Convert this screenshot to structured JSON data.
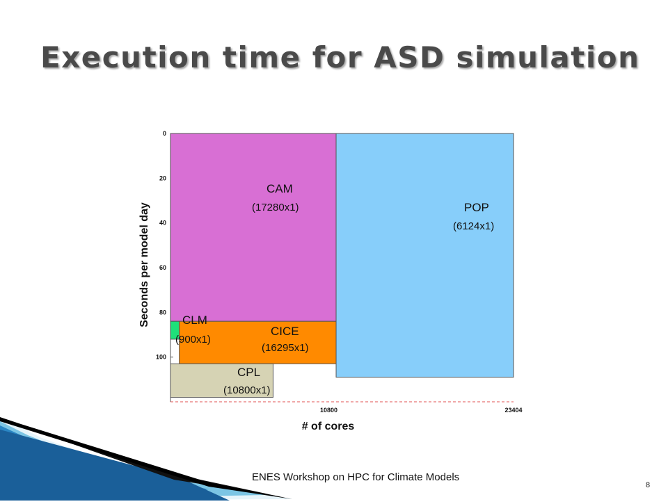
{
  "slide": {
    "title": "Execution time for ASD simulation",
    "footer": "ENES Workshop on HPC for Climate Models",
    "page_number": "8"
  },
  "colors": {
    "CAM": "#d86fd4",
    "POP": "#87cefa",
    "CLM": "#1fe07a",
    "CICE": "#ff8a00",
    "CPL": "#d6d3b4",
    "deco_blue": "#2a86c4",
    "deco_black": "#111111"
  },
  "chart_data": {
    "type": "bar",
    "xlabel": "# of cores",
    "ylabel": "Seconds per model day",
    "xlim": [
      0,
      23404
    ],
    "ylim": [
      0,
      120
    ],
    "y_inverted": true,
    "x_ticks": [
      "10800",
      "23404"
    ],
    "y_ticks": [
      "0",
      "20",
      "40",
      "60",
      "80",
      "100"
    ],
    "grid": false,
    "blocks": [
      {
        "component": "CAM",
        "label": "CAM",
        "sublabel": "(17280x1)",
        "cores_start": 0,
        "cores_end": 11300,
        "time_start": 0,
        "time_end": 84
      },
      {
        "component": "POP",
        "label": "POP",
        "sublabel": "(6124x1)",
        "cores_start": 11300,
        "cores_end": 23404,
        "time_start": 0,
        "time_end": 109
      },
      {
        "component": "CLM",
        "label": "CLM",
        "sublabel": "(900x1)",
        "cores_start": 0,
        "cores_end": 600,
        "time_start": 84,
        "time_end": 92
      },
      {
        "component": "CICE",
        "label": "CICE",
        "sublabel": "(16295x1)",
        "cores_start": 600,
        "cores_end": 11300,
        "time_start": 84,
        "time_end": 103
      },
      {
        "component": "CPL",
        "label": "CPL",
        "sublabel": "(10800x1)",
        "cores_start": 0,
        "cores_end": 7000,
        "time_start": 103,
        "time_end": 118
      }
    ]
  }
}
